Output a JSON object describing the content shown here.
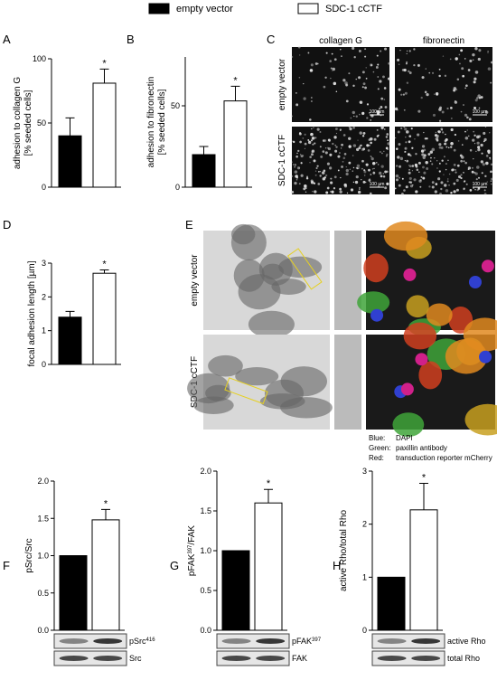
{
  "legend": [
    {
      "name": "empty vector",
      "color": "#000000"
    },
    {
      "name": "SDC-1 cCTF",
      "color": "#ffffff"
    }
  ],
  "chart_data": [
    {
      "type": "bar",
      "label": "A",
      "ylabel": [
        "adhesion to collagen G",
        "[% seeded cells]"
      ],
      "values": [
        40,
        81
      ],
      "errors": [
        14,
        11
      ],
      "ylim": [
        0,
        100
      ],
      "yticks": [
        0,
        50,
        100
      ],
      "annotation": "*"
    },
    {
      "type": "bar",
      "label": "B",
      "ylabel": [
        "adhesion to fibronectin",
        "[% seeded cells]"
      ],
      "values": [
        20,
        53
      ],
      "errors": [
        5,
        9
      ],
      "ylim": [
        0,
        80
      ],
      "yticks": [
        0,
        50
      ],
      "annotation": "*"
    },
    {
      "type": "bar",
      "label": "D",
      "ylabel": [
        "focal adhesion length [µm]"
      ],
      "values": [
        1.4,
        2.7
      ],
      "errors": [
        0.17,
        0.1
      ],
      "ylim": [
        0,
        3
      ],
      "yticks": [
        0,
        1,
        2,
        3
      ],
      "annotation": "*"
    },
    {
      "type": "bar",
      "label": "F",
      "ylabel": [
        "pSrc/Src"
      ],
      "values": [
        1.0,
        1.48
      ],
      "errors": [
        0,
        0.14
      ],
      "ylim": [
        0,
        2
      ],
      "yticks": [
        {
          "value": 0,
          "label": "0.0"
        },
        {
          "value": 0.5,
          "label": "0.5"
        },
        {
          "value": 1,
          "label": "1.0"
        },
        {
          "value": 1.5,
          "label": "1.5"
        },
        {
          "value": 2,
          "label": "2.0"
        }
      ],
      "annotation": "*",
      "blots": [
        {
          "main": "pSrc",
          "sup": "416"
        },
        {
          "main": "Src"
        }
      ]
    },
    {
      "type": "bar",
      "label": "G",
      "ylabel": [
        {
          "main": "pFAK",
          "sup": "397",
          "rest": "/FAK"
        }
      ],
      "values": [
        1.0,
        1.6
      ],
      "errors": [
        0,
        0.17
      ],
      "ylim": [
        0,
        2
      ],
      "yticks": [
        {
          "value": 0,
          "label": "0.0"
        },
        {
          "value": 0.5,
          "label": "0.5"
        },
        {
          "value": 1,
          "label": "1.0"
        },
        {
          "value": 1.5,
          "label": "1.5"
        },
        {
          "value": 2,
          "label": "2.0"
        }
      ],
      "annotation": "*",
      "blots": [
        {
          "main": "pFAK",
          "sup": "397"
        },
        {
          "main": "FAK"
        }
      ]
    },
    {
      "type": "bar",
      "label": "H",
      "ylabel": [
        "active Rho/total Rho"
      ],
      "values": [
        1.0,
        2.27
      ],
      "errors": [
        0,
        0.5
      ],
      "ylim": [
        0,
        3
      ],
      "yticks": [
        0,
        1,
        2,
        3
      ],
      "annotation": "*",
      "blots": [
        {
          "main": "active Rho"
        },
        {
          "main": "total Rho"
        }
      ]
    }
  ],
  "panel_c": {
    "label": "C",
    "columns": [
      "collagen G",
      "fibronectin"
    ],
    "rows": [
      "empty vector",
      "SDC-1 cCTF"
    ],
    "scale_bar": "100 µm"
  },
  "panel_e": {
    "label": "E",
    "rows": [
      "empty vector",
      "SDC-1 cCTF"
    ],
    "legend": [
      {
        "color": "Blue:",
        "text": "DAPI"
      },
      {
        "color": "Green:",
        "text": "paxillin antibody"
      },
      {
        "color": "Red:",
        "text": "transduction reporter mCherry"
      }
    ]
  }
}
